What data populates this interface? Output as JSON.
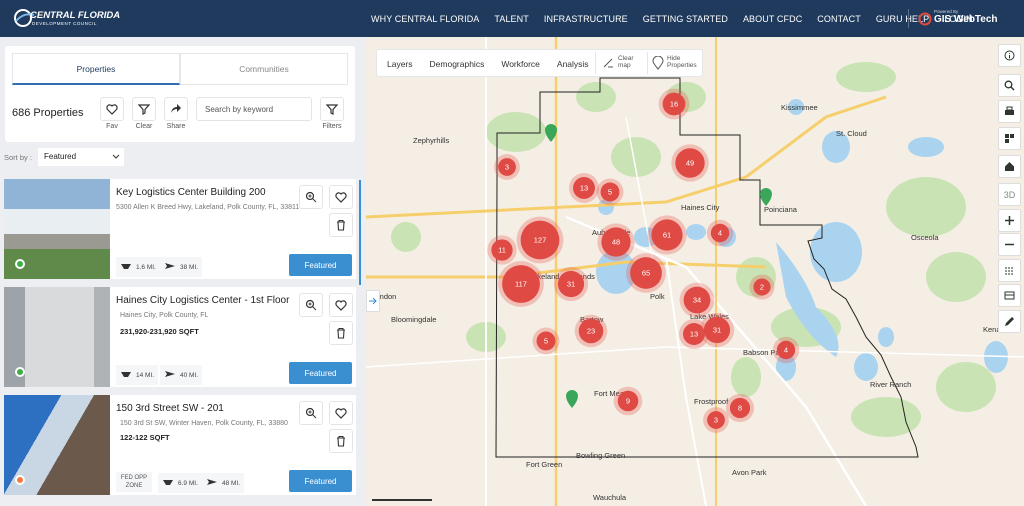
{
  "header": {
    "logo_title": "CENTRAL FLORIDA",
    "logo_subtitle": "DEVELOPMENT COUNCIL",
    "nav": [
      "WHY CENTRAL FLORIDA",
      "TALENT",
      "INFRASTRUCTURE",
      "GETTING STARTED",
      "ABOUT CFDC",
      "CONTACT",
      "GURU HELP",
      "LOGIN"
    ],
    "powered_by": "Powered By",
    "brand": "GIS WebTech"
  },
  "sidebar": {
    "tabs": [
      "Properties",
      "Communities"
    ],
    "count": "686 Properties",
    "actions": [
      "Fav",
      "Clear",
      "Share"
    ],
    "search_placeholder": "Search by keyword",
    "filters": "Filters",
    "sort_label": "Sort by :",
    "sort_value": "Featured"
  },
  "listings": [
    {
      "title": "Key Logistics Center Building 200",
      "address": "5300 Allen K Breed Hwy, Lakeland, Polk County, FL, 33811",
      "distances": [
        "1.6 MI.",
        "38 MI."
      ],
      "status": "Featured"
    },
    {
      "title": "Haines City Logistics Center - 1st Floor",
      "address": "Haines City, Polk County, FL",
      "size": "231,920-231,920 SQFT",
      "distances": [
        "14 MI.",
        "40 MI."
      ],
      "status": "Featured"
    },
    {
      "title": "150 3rd Street SW - 201",
      "address": "150 3rd St SW, Winter Haven, Polk County, FL, 33880",
      "size": "122-122 SQFT",
      "badge": "FED OPP ZONE",
      "distances": [
        "6.9 MI.",
        "48 MI."
      ],
      "status": "Featured"
    }
  ],
  "map": {
    "tools": [
      "Layers",
      "Demographics",
      "Workforce",
      "Analysis"
    ],
    "clear_map": "Clear map",
    "hide_properties": "Hide Properties",
    "view_3d": "3D",
    "clusters": [
      16,
      49,
      3,
      13,
      5,
      127,
      48,
      61,
      4,
      11,
      65,
      117,
      31,
      2,
      34,
      13,
      31,
      23,
      5,
      4,
      9,
      8,
      3
    ],
    "places": [
      "Zephyrhills",
      "Kissimmee",
      "St. Cloud",
      "Haines City",
      "Poinciana",
      "Osceola",
      "Lakeland",
      "Auburndale",
      "Lakeland Highlands",
      "Polk",
      "Brandon",
      "Bloomingdale",
      "Bartow",
      "Lake Wales",
      "Babson Park",
      "Fort Meade",
      "Frostproof",
      "Fort Green",
      "Bowling Green",
      "Avon Park",
      "Wauchula",
      "River Ranch",
      "Kenansville"
    ]
  }
}
